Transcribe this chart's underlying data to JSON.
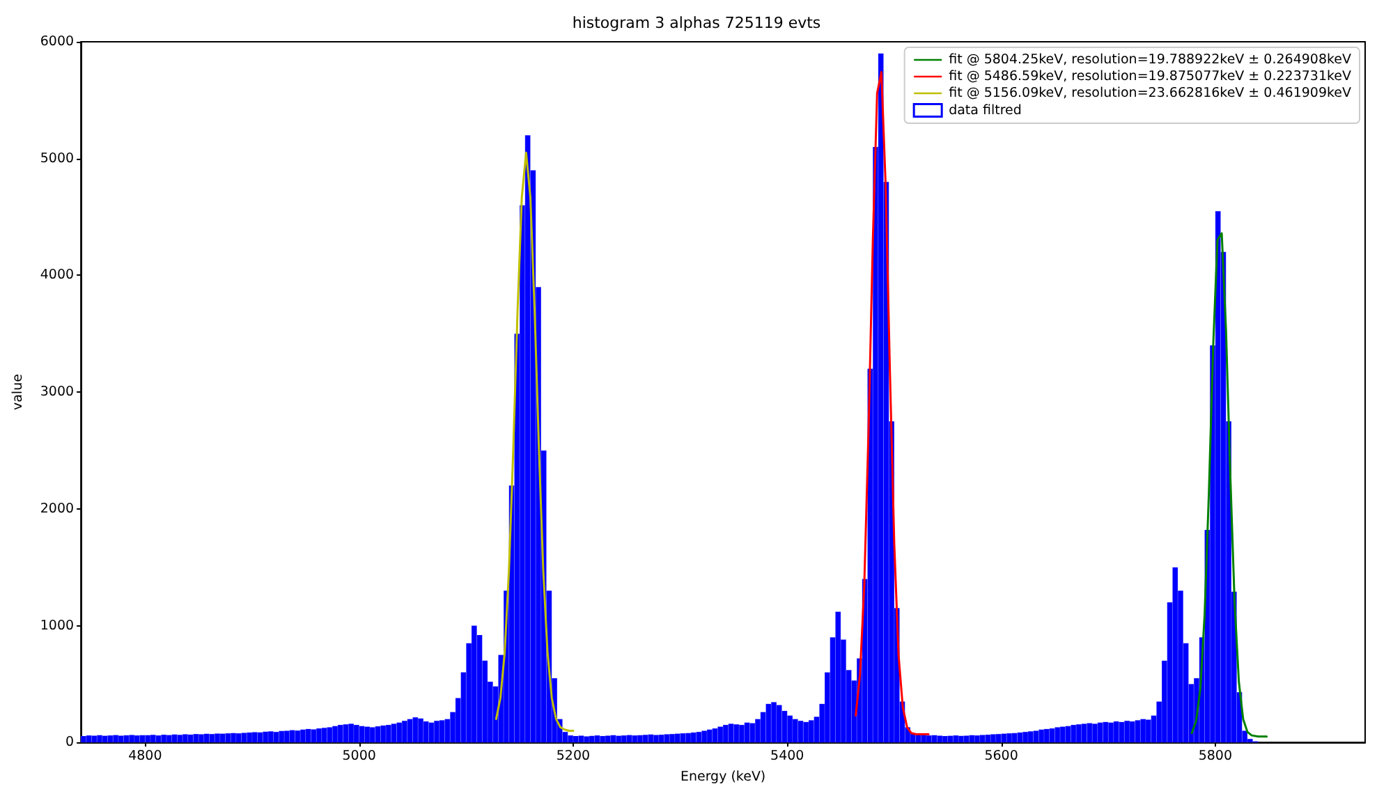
{
  "chart_data": {
    "type": "histogram",
    "title": "histogram 3 alphas 725119 evts",
    "xlabel": "Energy (keV)",
    "ylabel": "value",
    "xlim": [
      4740,
      5940
    ],
    "xticks": [
      4800,
      5000,
      5200,
      5400,
      5600,
      5800
    ],
    "ylim": [
      0,
      6000
    ],
    "yticks": [
      0,
      1000,
      2000,
      3000,
      4000,
      5000,
      6000
    ],
    "grid": false,
    "legend": "top right",
    "series": [
      {
        "type": "line",
        "name": "fit @ 5804.25keV, resolution=19.788922keV ± 0.264908keV",
        "color": "#008000",
        "x": [
          5778,
          5782,
          5786,
          5790,
          5794,
          5798,
          5802,
          5806,
          5810,
          5814,
          5818,
          5822,
          5826,
          5830,
          5834,
          5840,
          5848
        ],
        "values": [
          80,
          180,
          460,
          1090,
          2140,
          3390,
          4300,
          4360,
          3530,
          2290,
          1200,
          520,
          200,
          90,
          60,
          50,
          50
        ]
      },
      {
        "type": "line",
        "name": "fit @ 5486.59keV, resolution=19.875077keV ± 0.223731keV",
        "color": "#ff0000",
        "x": [
          5464,
          5468,
          5472,
          5476,
          5480,
          5484,
          5488,
          5492,
          5496,
          5500,
          5504,
          5508,
          5512,
          5516,
          5520,
          5526,
          5532
        ],
        "values": [
          230,
          580,
          1350,
          2680,
          4300,
          5560,
          5740,
          4760,
          3160,
          1700,
          750,
          300,
          130,
          80,
          70,
          70,
          70
        ]
      },
      {
        "type": "line",
        "name": "fit @ 5156.09keV, resolution=23.662816keV ± 0.461909keV",
        "color": "#bfbf00",
        "x": [
          5128,
          5132,
          5136,
          5140,
          5144,
          5148,
          5152,
          5156,
          5160,
          5164,
          5168,
          5172,
          5176,
          5180,
          5184,
          5188,
          5192,
          5196,
          5200
        ],
        "values": [
          200,
          380,
          770,
          1480,
          2510,
          3690,
          4670,
          5050,
          4670,
          3690,
          2510,
          1480,
          770,
          380,
          200,
          130,
          110,
          100,
          100
        ]
      },
      {
        "name": "data filtred",
        "color": "#0000ff",
        "bins": [
          4740,
          4745,
          4750,
          4755,
          4760,
          4765,
          4770,
          4775,
          4780,
          4785,
          4790,
          4795,
          4800,
          4805,
          4810,
          4815,
          4820,
          4825,
          4830,
          4835,
          4840,
          4845,
          4850,
          4855,
          4860,
          4865,
          4870,
          4875,
          4880,
          4885,
          4890,
          4895,
          4900,
          4905,
          4910,
          4915,
          4920,
          4925,
          4930,
          4935,
          4940,
          4945,
          4950,
          4955,
          4960,
          4965,
          4970,
          4975,
          4980,
          4985,
          4990,
          4995,
          5000,
          5005,
          5010,
          5015,
          5020,
          5025,
          5030,
          5035,
          5040,
          5045,
          5050,
          5055,
          5060,
          5065,
          5070,
          5075,
          5080,
          5085,
          5090,
          5095,
          5100,
          5105,
          5110,
          5115,
          5120,
          5125,
          5130,
          5135,
          5140,
          5145,
          5150,
          5155,
          5160,
          5165,
          5170,
          5175,
          5180,
          5185,
          5190,
          5195,
          5200,
          5205,
          5210,
          5215,
          5220,
          5225,
          5230,
          5235,
          5240,
          5245,
          5250,
          5255,
          5260,
          5265,
          5270,
          5275,
          5280,
          5285,
          5290,
          5295,
          5300,
          5305,
          5310,
          5315,
          5320,
          5325,
          5330,
          5335,
          5340,
          5345,
          5350,
          5355,
          5360,
          5365,
          5370,
          5375,
          5380,
          5385,
          5390,
          5395,
          5400,
          5405,
          5410,
          5415,
          5420,
          5425,
          5430,
          5435,
          5440,
          5445,
          5450,
          5455,
          5460,
          5465,
          5470,
          5475,
          5480,
          5485,
          5490,
          5495,
          5500,
          5505,
          5510,
          5515,
          5520,
          5525,
          5530,
          5535,
          5540,
          5545,
          5550,
          5555,
          5560,
          5565,
          5570,
          5575,
          5580,
          5585,
          5590,
          5595,
          5600,
          5605,
          5610,
          5615,
          5620,
          5625,
          5630,
          5635,
          5640,
          5645,
          5650,
          5655,
          5660,
          5665,
          5670,
          5675,
          5680,
          5685,
          5690,
          5695,
          5700,
          5705,
          5710,
          5715,
          5720,
          5725,
          5730,
          5735,
          5740,
          5745,
          5750,
          5755,
          5760,
          5765,
          5770,
          5775,
          5780,
          5785,
          5790,
          5795,
          5800,
          5805,
          5810,
          5815,
          5820,
          5825,
          5830,
          5835,
          5840
        ],
        "values": [
          55,
          60,
          58,
          62,
          57,
          60,
          63,
          58,
          61,
          64,
          60,
          62,
          62,
          65,
          60,
          66,
          63,
          68,
          65,
          70,
          67,
          72,
          70,
          74,
          72,
          76,
          75,
          78,
          80,
          78,
          82,
          85,
          88,
          86,
          92,
          95,
          90,
          98,
          100,
          105,
          102,
          110,
          115,
          112,
          120,
          125,
          130,
          140,
          150,
          155,
          160,
          150,
          140,
          135,
          130,
          138,
          145,
          150,
          160,
          170,
          185,
          200,
          215,
          205,
          180,
          170,
          185,
          190,
          200,
          260,
          380,
          600,
          850,
          1000,
          920,
          700,
          520,
          480,
          750,
          1300,
          2200,
          3500,
          4600,
          5200,
          4900,
          3900,
          2500,
          1300,
          550,
          200,
          90,
          60,
          55,
          58,
          52,
          56,
          60,
          55,
          58,
          62,
          57,
          60,
          63,
          60,
          62,
          65,
          68,
          64,
          66,
          70,
          72,
          75,
          78,
          80,
          85,
          90,
          100,
          110,
          120,
          135,
          150,
          160,
          155,
          150,
          170,
          165,
          200,
          260,
          330,
          345,
          320,
          270,
          230,
          200,
          185,
          175,
          190,
          220,
          330,
          600,
          900,
          1120,
          880,
          620,
          530,
          720,
          1400,
          3200,
          5100,
          5900,
          4800,
          2750,
          1150,
          350,
          130,
          80,
          70,
          65,
          60,
          62,
          58,
          55,
          57,
          60,
          56,
          58,
          62,
          60,
          64,
          66,
          70,
          72,
          75,
          78,
          80,
          85,
          90,
          95,
          100,
          110,
          115,
          120,
          130,
          135,
          140,
          150,
          155,
          160,
          165,
          160,
          170,
          175,
          170,
          180,
          175,
          185,
          180,
          190,
          200,
          195,
          230,
          350,
          700,
          1200,
          1500,
          1300,
          850,
          500,
          550,
          900,
          1820,
          3400,
          4550,
          4200,
          2750,
          1290,
          430,
          100,
          30,
          10
        ]
      }
    ]
  }
}
